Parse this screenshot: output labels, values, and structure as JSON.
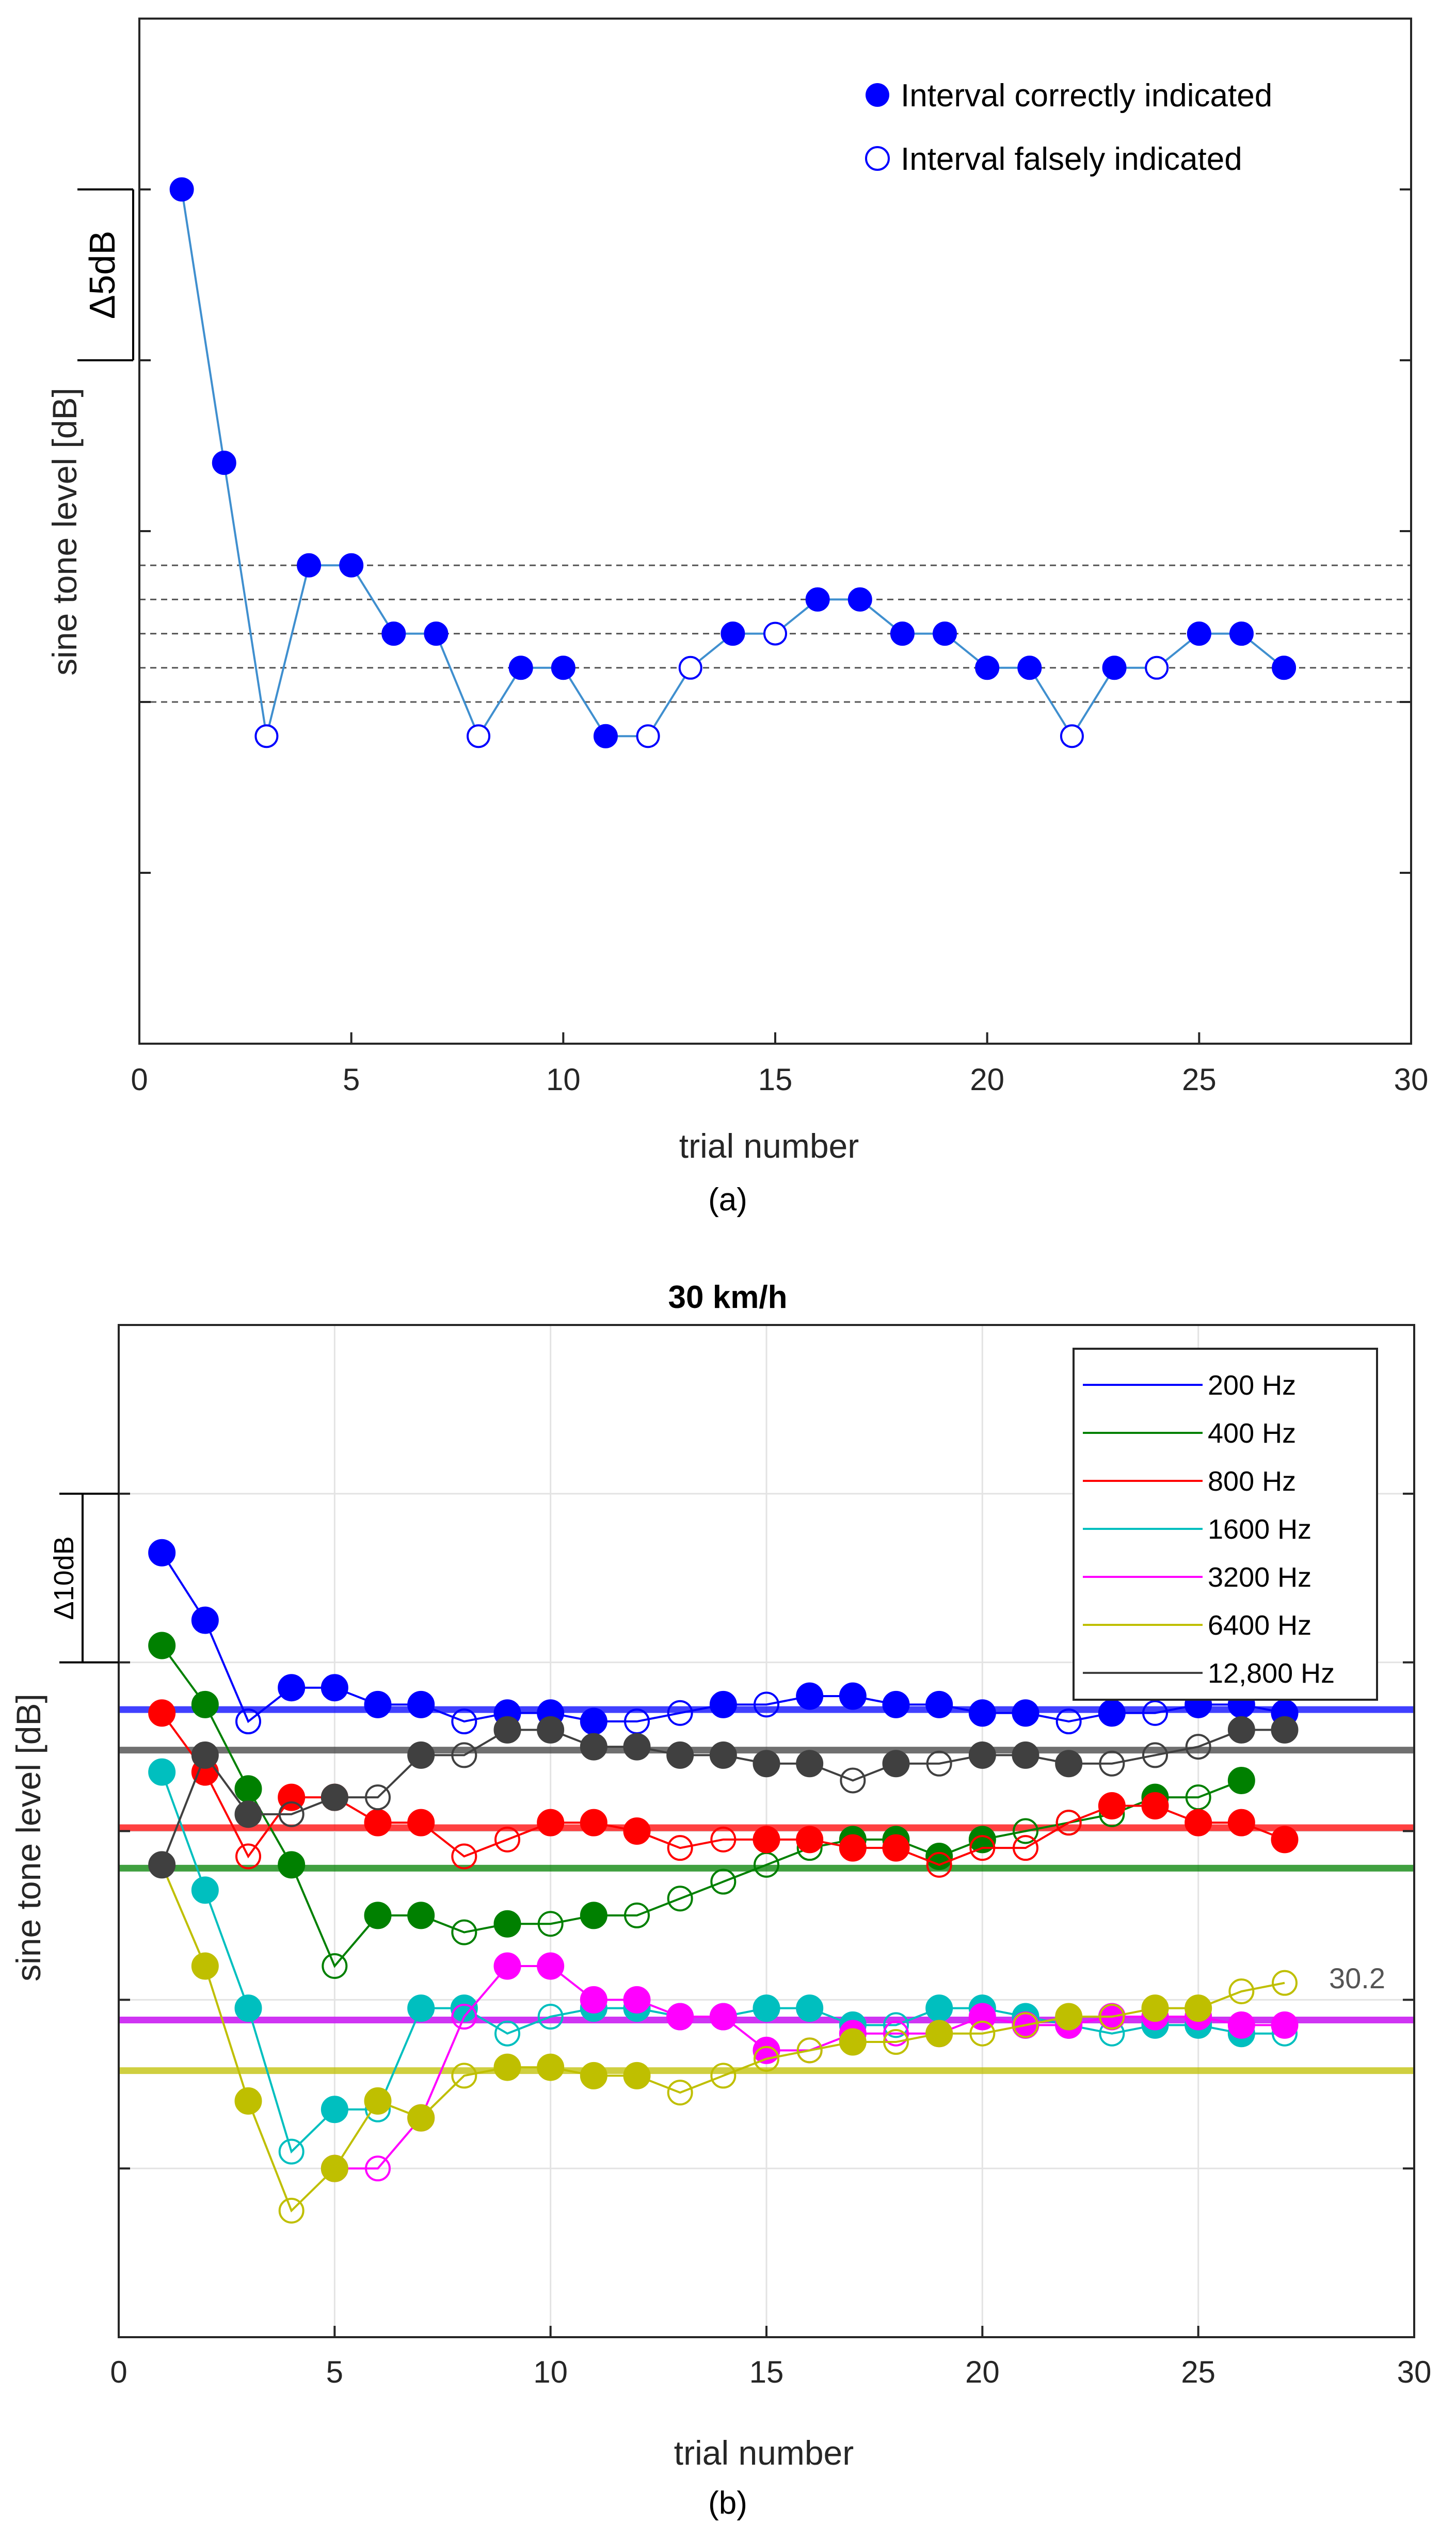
{
  "chart_data": [
    {
      "type": "line",
      "panel_label": "(a)",
      "title": "",
      "xlabel": "trial number",
      "ylabel": "sine tone level [dB]",
      "xlim": [
        0,
        30
      ],
      "xticks": [
        0,
        5,
        10,
        15,
        20,
        25,
        30
      ],
      "ylim": [
        0,
        30
      ],
      "y_tick_labels_shown": false,
      "scale_bar_label": "Δ5dB",
      "scale_bar_range": [
        20,
        25
      ],
      "grid": false,
      "reference_lines_dashed": [
        10,
        11,
        12,
        13,
        14
      ],
      "legend": {
        "placement": "top-right",
        "entries": [
          {
            "label": "Interval correctly indicated",
            "marker": "filled-circle"
          },
          {
            "label": "Interval falsely indicated",
            "marker": "open-circle"
          }
        ]
      },
      "series": [
        {
          "color": "#0000ff",
          "line_color": "#3f8fcf",
          "x": [
            1,
            2,
            3,
            4,
            5,
            6,
            7,
            8,
            9,
            10,
            11,
            12,
            13,
            14,
            15,
            16,
            17,
            18,
            19,
            20,
            21,
            22,
            23,
            24,
            25,
            26,
            27
          ],
          "y": [
            25,
            17,
            9,
            14,
            14,
            12,
            12,
            9,
            11,
            11,
            9,
            9,
            11,
            12,
            12,
            13,
            13,
            12,
            12,
            11,
            11,
            9,
            11,
            11,
            12,
            12,
            11
          ],
          "correct": [
            1,
            1,
            0,
            1,
            1,
            1,
            1,
            0,
            1,
            1,
            1,
            0,
            0,
            1,
            0,
            1,
            1,
            1,
            1,
            1,
            1,
            0,
            1,
            0,
            1,
            1,
            1
          ]
        }
      ]
    },
    {
      "type": "line",
      "panel_label": "(b)",
      "title": "30 km/h",
      "xlabel": "trial number",
      "ylabel": "sine tone level [dB]",
      "xlim": [
        0,
        30
      ],
      "xticks": [
        0,
        5,
        10,
        15,
        20,
        25,
        30
      ],
      "ylim": [
        0,
        60
      ],
      "y_tick_labels_shown": false,
      "scale_bar_label": "Δ10dB",
      "scale_bar_range": [
        40,
        50
      ],
      "grid": true,
      "partial_annotation": "30.2",
      "legend": {
        "placement": "top-right"
      },
      "series": [
        {
          "name": "200 Hz",
          "color": "#0000ff",
          "threshold": 37.2,
          "x": [
            1,
            2,
            3,
            4,
            5,
            6,
            7,
            8,
            9,
            10,
            11,
            12,
            13,
            14,
            15,
            16,
            17,
            18,
            19,
            20,
            21,
            22,
            23,
            24,
            25,
            26,
            27
          ],
          "y": [
            46.5,
            42.5,
            36.5,
            38.5,
            38.5,
            37.5,
            37.5,
            36.5,
            37,
            37,
            36.5,
            36.5,
            37,
            37.5,
            37.5,
            38,
            38,
            37.5,
            37.5,
            37,
            37,
            36.5,
            37,
            37,
            37.5,
            37.5,
            37
          ],
          "correct": [
            1,
            1,
            0,
            1,
            1,
            1,
            1,
            0,
            1,
            1,
            1,
            0,
            0,
            1,
            0,
            1,
            1,
            1,
            1,
            1,
            1,
            0,
            1,
            0,
            1,
            1,
            1
          ]
        },
        {
          "name": "400 Hz",
          "color": "#008000",
          "threshold": 27.8,
          "x": [
            1,
            2,
            3,
            4,
            5,
            6,
            7,
            8,
            9,
            10,
            11,
            12,
            13,
            14,
            15,
            16,
            17,
            18,
            19,
            20,
            21,
            22,
            23,
            24,
            25,
            26
          ],
          "y": [
            41,
            37.5,
            32.5,
            28,
            22,
            25,
            25,
            24,
            24.5,
            24.5,
            25,
            25,
            26,
            27,
            28,
            29,
            29.5,
            29.5,
            28.5,
            29.5,
            30,
            30.5,
            31,
            32,
            32,
            33
          ],
          "correct": [
            1,
            1,
            1,
            1,
            0,
            1,
            1,
            0,
            1,
            0,
            1,
            0,
            0,
            0,
            0,
            0,
            1,
            1,
            1,
            1,
            0,
            0,
            0,
            1,
            0,
            1
          ]
        },
        {
          "name": "800 Hz",
          "color": "#ff0000",
          "threshold": 30.2,
          "x": [
            1,
            2,
            3,
            4,
            5,
            6,
            7,
            8,
            9,
            10,
            11,
            12,
            13,
            14,
            15,
            16,
            17,
            18,
            19,
            20,
            21,
            22,
            23,
            24,
            25,
            26,
            27
          ],
          "y": [
            37,
            33.5,
            28.5,
            32,
            32,
            30.5,
            30.5,
            28.5,
            29.5,
            30.5,
            30.5,
            30,
            29,
            29.5,
            29.5,
            29.5,
            29,
            29,
            28,
            29,
            29,
            30.5,
            31.5,
            31.5,
            30.5,
            30.5,
            29.5
          ],
          "correct": [
            1,
            1,
            0,
            1,
            1,
            1,
            1,
            0,
            0,
            1,
            1,
            1,
            0,
            0,
            1,
            1,
            1,
            1,
            0,
            0,
            0,
            0,
            1,
            1,
            1,
            1,
            1
          ]
        },
        {
          "name": "1600 Hz",
          "color": "#00bfbf",
          "threshold": 18.8,
          "x": [
            1,
            2,
            3,
            4,
            5,
            6,
            7,
            8,
            9,
            10,
            11,
            12,
            13,
            14,
            15,
            16,
            17,
            18,
            19,
            20,
            21,
            22,
            23,
            24,
            25,
            26,
            27
          ],
          "y": [
            33.5,
            26.5,
            19.5,
            11,
            13.5,
            13.5,
            19.5,
            19.5,
            18,
            19,
            19.5,
            19.5,
            19,
            19,
            19.5,
            19.5,
            18.5,
            18.5,
            19.5,
            19.5,
            19,
            18.5,
            18,
            18.5,
            18.5,
            18,
            18
          ],
          "correct": [
            1,
            1,
            1,
            0,
            1,
            0,
            1,
            1,
            0,
            0,
            1,
            1,
            1,
            1,
            1,
            1,
            1,
            0,
            1,
            1,
            1,
            1,
            0,
            1,
            1,
            1,
            0
          ]
        },
        {
          "name": "3200 Hz",
          "color": "#ff00ff",
          "threshold": 18.8,
          "x": [
            5,
            6,
            7,
            8,
            9,
            10,
            11,
            12,
            13,
            14,
            15,
            16,
            17,
            18,
            19,
            20,
            21,
            22,
            23,
            24,
            25,
            26,
            27
          ],
          "y": [
            10,
            10,
            13,
            19,
            22,
            22,
            20,
            20,
            19,
            19,
            17,
            17,
            18,
            18,
            18,
            19,
            18.5,
            18.5,
            19,
            19,
            19,
            18.5,
            18.5
          ],
          "correct": [
            1,
            0,
            1,
            0,
            1,
            1,
            1,
            1,
            1,
            1,
            1,
            0,
            1,
            0,
            1,
            1,
            1,
            1,
            1,
            1,
            1,
            1,
            1
          ]
        },
        {
          "name": "6400 Hz",
          "color": "#bfbf00",
          "threshold": 15.8,
          "x": [
            1,
            2,
            3,
            4,
            5,
            6,
            7,
            8,
            9,
            10,
            11,
            12,
            13,
            14,
            15,
            16,
            17,
            18,
            19,
            20,
            21,
            22,
            23,
            24,
            25,
            26,
            27
          ],
          "y": [
            28,
            22,
            14,
            7.5,
            10,
            14,
            13,
            15.5,
            16,
            16,
            15.5,
            15.5,
            14.5,
            15.5,
            16.5,
            17,
            17.5,
            17.5,
            18,
            18,
            18.5,
            19,
            19,
            19.5,
            19.5,
            20.5,
            21
          ],
          "correct": [
            0,
            1,
            1,
            0,
            1,
            1,
            1,
            0,
            1,
            1,
            1,
            1,
            0,
            0,
            0,
            0,
            1,
            0,
            1,
            0,
            0,
            1,
            0,
            1,
            1,
            0,
            0
          ]
        },
        {
          "name": "12,800 Hz",
          "color": "#404040",
          "threshold": 34.8,
          "x": [
            1,
            2,
            3,
            4,
            5,
            6,
            7,
            8,
            9,
            10,
            11,
            12,
            13,
            14,
            15,
            16,
            17,
            18,
            19,
            20,
            21,
            22,
            23,
            24,
            25,
            26,
            27
          ],
          "y": [
            28,
            34.5,
            31,
            31,
            32,
            32,
            34.5,
            34.5,
            36,
            36,
            35,
            35,
            34.5,
            34.5,
            34,
            34,
            33,
            34,
            34,
            34.5,
            34.5,
            34,
            34,
            34.5,
            35,
            36,
            36
          ],
          "correct": [
            1,
            1,
            1,
            0,
            1,
            0,
            1,
            0,
            1,
            1,
            1,
            1,
            1,
            1,
            1,
            1,
            0,
            1,
            0,
            1,
            1,
            1,
            0,
            0,
            0,
            1,
            1
          ]
        }
      ]
    }
  ]
}
